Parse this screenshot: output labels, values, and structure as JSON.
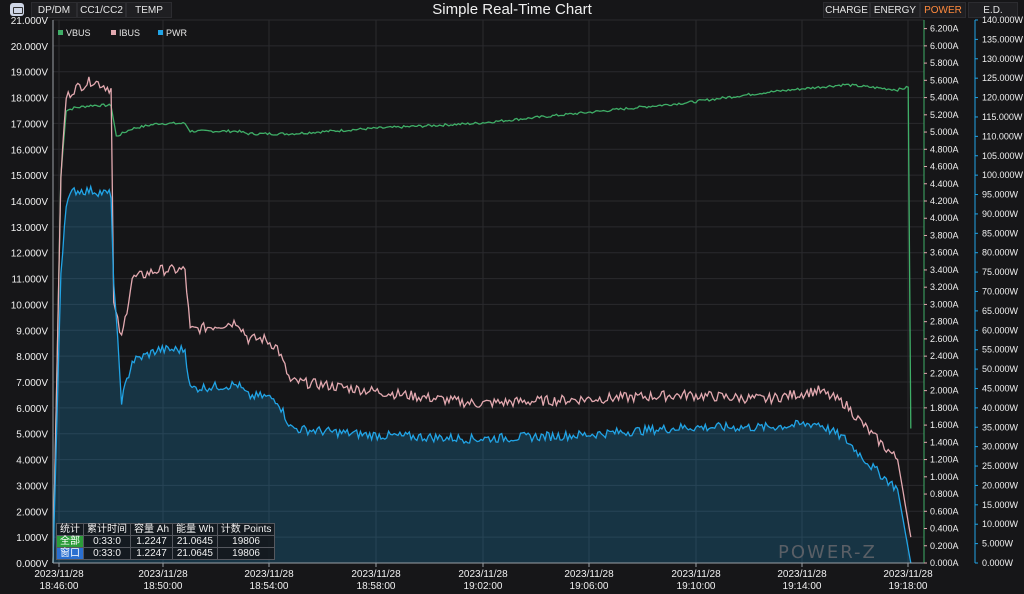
{
  "app": {
    "title": "Simple Real-Time Chart"
  },
  "toolbar": {
    "left_tabs": [
      "DP/DM",
      "CC1/CC2",
      "TEMP"
    ],
    "right_tabs": [
      "CHARGE",
      "ENERGY",
      "POWER",
      "E.D."
    ],
    "active_tab": "POWER"
  },
  "colors": {
    "vbus": "#3fae67",
    "ibus": "#e3a9b0",
    "pwr": "#21a4e6",
    "active_tab": "#ff8a3d"
  },
  "stats": {
    "headers": [
      "统计",
      "累计时间",
      "容量 Ah",
      "能量 Wh",
      "计数 Points"
    ],
    "rows": [
      [
        "全部",
        "0:33:0",
        "1.2247",
        "21.0645",
        "19806"
      ],
      [
        "窗口",
        "0:33:0",
        "1.2247",
        "21.0645",
        "19806"
      ]
    ]
  },
  "logo": "POWER-Z",
  "chart_data": {
    "type": "line",
    "legend": [
      "VBUS",
      "IBUS",
      "PWR"
    ],
    "legend_position": "top-left",
    "grid": true,
    "x_ticks": [
      [
        "2023/11/28",
        "18:46:00"
      ],
      [
        "2023/11/28",
        "18:50:00"
      ],
      [
        "2023/11/28",
        "18:54:00"
      ],
      [
        "2023/11/28",
        "18:58:00"
      ],
      [
        "2023/11/28",
        "19:02:00"
      ],
      [
        "2023/11/28",
        "19:06:00"
      ],
      [
        "2023/11/28",
        "19:10:00"
      ],
      [
        "2023/11/28",
        "19:14:00"
      ],
      [
        "2023/11/28",
        "19:18:00"
      ]
    ],
    "x_range_min": [
      0,
      33
    ],
    "y_left": {
      "unit": "V",
      "ylim": [
        0,
        21
      ],
      "ticks": [
        "0.000V",
        "1.000V",
        "2.000V",
        "3.000V",
        "4.000V",
        "5.000V",
        "6.000V",
        "7.000V",
        "8.000V",
        "9.000V",
        "10.000V",
        "11.000V",
        "12.000V",
        "13.000V",
        "14.000V",
        "15.000V",
        "16.000V",
        "17.000V",
        "18.000V",
        "19.000V",
        "20.000V",
        "21.000V"
      ]
    },
    "y_mid": {
      "unit": "A",
      "ylim": [
        0,
        6.3
      ],
      "ticks": [
        "0.000A",
        "0.200A",
        "0.400A",
        "0.600A",
        "0.800A",
        "1.000A",
        "1.200A",
        "1.400A",
        "1.600A",
        "1.800A",
        "2.000A",
        "2.200A",
        "2.400A",
        "2.600A",
        "2.800A",
        "3.000A",
        "3.200A",
        "3.400A",
        "3.600A",
        "3.800A",
        "4.000A",
        "4.200A",
        "4.400A",
        "4.600A",
        "4.800A",
        "5.000A",
        "5.200A",
        "5.400A",
        "5.600A",
        "5.800A",
        "6.000A",
        "6.200A"
      ]
    },
    "y_right": {
      "unit": "W",
      "ylim": [
        0,
        140
      ],
      "ticks": [
        "0.000W",
        "5.000W",
        "10.000W",
        "15.000W",
        "20.000W",
        "25.000W",
        "30.000W",
        "35.000W",
        "40.000W",
        "45.000W",
        "50.000W",
        "55.000W",
        "60.000W",
        "65.000W",
        "70.000W",
        "75.000W",
        "80.000W",
        "85.000W",
        "90.000W",
        "95.000W",
        "100.000W",
        "105.000W",
        "110.000W",
        "115.000W",
        "120.000W",
        "125.000W",
        "130.000W",
        "135.000W",
        "140.000W"
      ]
    },
    "series": [
      {
        "name": "VBUS",
        "axis": "left",
        "x": [
          0,
          0.3,
          0.5,
          0.8,
          1.5,
          2.2,
          2.4,
          3.0,
          4.0,
          5.0,
          5.2,
          7.0,
          7.4,
          9.0,
          12.0,
          16.0,
          20.0,
          24.0,
          27.0,
          29.0,
          30.0,
          31.0,
          32.0,
          32.4,
          32.5
        ],
        "y": [
          0,
          15.0,
          17.5,
          17.6,
          17.7,
          17.7,
          16.5,
          16.8,
          17.0,
          17.0,
          16.7,
          16.7,
          16.6,
          16.6,
          16.8,
          17.0,
          17.4,
          17.8,
          18.2,
          18.4,
          18.5,
          18.4,
          18.3,
          18.4,
          5.2
        ]
      },
      {
        "name": "IBUS",
        "axis": "mid",
        "x": [
          0,
          0.3,
          0.5,
          0.8,
          1.5,
          2.2,
          2.3,
          2.6,
          3.0,
          4.0,
          5.0,
          5.2,
          7.0,
          7.4,
          8.0,
          8.5,
          9.0,
          9.3,
          12.0,
          16.0,
          20.0,
          24.0,
          27.0,
          29.0,
          30.0,
          31.0,
          32.0,
          32.5
        ],
        "y": [
          0,
          4.5,
          5.4,
          5.5,
          5.6,
          5.5,
          3.0,
          2.6,
          3.3,
          3.4,
          3.4,
          2.7,
          2.8,
          2.6,
          2.6,
          2.5,
          2.1,
          2.1,
          2.0,
          1.85,
          1.9,
          1.95,
          1.9,
          2.0,
          1.85,
          1.5,
          1.2,
          0.3
        ]
      },
      {
        "name": "PWR",
        "axis": "right",
        "x": [
          0,
          0.3,
          0.5,
          0.8,
          1.5,
          2.2,
          2.3,
          2.6,
          3.0,
          4.0,
          5.0,
          5.2,
          7.0,
          7.4,
          8.0,
          8.5,
          9.0,
          9.3,
          12.0,
          16.0,
          20.0,
          24.0,
          27.0,
          29.0,
          30.0,
          31.0,
          32.0,
          32.5
        ],
        "y": [
          0,
          75,
          93,
          96,
          96,
          95,
          72,
          42,
          52,
          55,
          55,
          45,
          46,
          43,
          43,
          42,
          35,
          34.5,
          33,
          32,
          33,
          35,
          35,
          36,
          32,
          25,
          19,
          0
        ]
      }
    ]
  }
}
